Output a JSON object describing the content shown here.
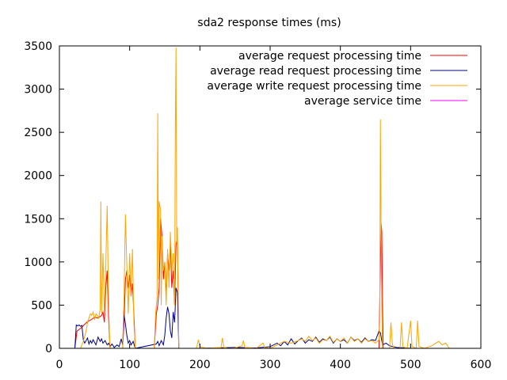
{
  "chart_data": {
    "type": "line",
    "title": "sda2 response times (ms)",
    "xlabel": "",
    "ylabel": "",
    "xlim": [
      0,
      600
    ],
    "ylim": [
      0,
      3500
    ],
    "xticks": [
      0,
      100,
      200,
      300,
      400,
      500,
      600
    ],
    "yticks": [
      0,
      500,
      1000,
      1500,
      2000,
      2500,
      3000,
      3500
    ],
    "grid": false,
    "legend_position": "top-right",
    "series": [
      {
        "name": "average request processing time",
        "color": "#ff0000",
        "points": [
          [
            22,
            0
          ],
          [
            25,
            200
          ],
          [
            30,
            230
          ],
          [
            35,
            270
          ],
          [
            40,
            310
          ],
          [
            45,
            330
          ],
          [
            50,
            360
          ],
          [
            55,
            350
          ],
          [
            60,
            380
          ],
          [
            62,
            420
          ],
          [
            64,
            300
          ],
          [
            66,
            700
          ],
          [
            68,
            900
          ],
          [
            70,
            350
          ],
          [
            72,
            0
          ],
          [
            80,
            0
          ],
          [
            90,
            0
          ],
          [
            92,
            300
          ],
          [
            94,
            800
          ],
          [
            96,
            900
          ],
          [
            98,
            700
          ],
          [
            100,
            850
          ],
          [
            102,
            600
          ],
          [
            104,
            750
          ],
          [
            106,
            400
          ],
          [
            108,
            0
          ],
          [
            135,
            0
          ],
          [
            138,
            400
          ],
          [
            140,
            500
          ],
          [
            142,
            700
          ],
          [
            144,
            1500
          ],
          [
            146,
            1300
          ],
          [
            148,
            800
          ],
          [
            150,
            1000
          ],
          [
            152,
            600
          ],
          [
            154,
            1100
          ],
          [
            156,
            900
          ],
          [
            158,
            1200
          ],
          [
            160,
            700
          ],
          [
            162,
            900
          ],
          [
            164,
            500
          ],
          [
            166,
            1200
          ],
          [
            168,
            1300
          ],
          [
            170,
            0
          ],
          [
            455,
            0
          ],
          [
            457,
            1000
          ],
          [
            458,
            1450
          ],
          [
            459,
            1350
          ],
          [
            460,
            500
          ],
          [
            461,
            0
          ]
        ]
      },
      {
        "name": "average read request processing time",
        "color": "#00008b",
        "points": [
          [
            22,
            0
          ],
          [
            24,
            270
          ],
          [
            26,
            260
          ],
          [
            28,
            270
          ],
          [
            30,
            255
          ],
          [
            32,
            265
          ],
          [
            34,
            100
          ],
          [
            36,
            60
          ],
          [
            38,
            90
          ],
          [
            40,
            120
          ],
          [
            42,
            50
          ],
          [
            44,
            90
          ],
          [
            46,
            60
          ],
          [
            48,
            100
          ],
          [
            50,
            70
          ],
          [
            52,
            40
          ],
          [
            55,
            130
          ],
          [
            58,
            80
          ],
          [
            60,
            110
          ],
          [
            62,
            60
          ],
          [
            65,
            90
          ],
          [
            68,
            40
          ],
          [
            70,
            60
          ],
          [
            72,
            20
          ],
          [
            75,
            50
          ],
          [
            78,
            10
          ],
          [
            82,
            40
          ],
          [
            85,
            20
          ],
          [
            88,
            110
          ],
          [
            90,
            40
          ],
          [
            92,
            390
          ],
          [
            94,
            280
          ],
          [
            96,
            150
          ],
          [
            98,
            60
          ],
          [
            100,
            90
          ],
          [
            102,
            40
          ],
          [
            105,
            80
          ],
          [
            108,
            0
          ],
          [
            138,
            50
          ],
          [
            140,
            80
          ],
          [
            142,
            30
          ],
          [
            145,
            90
          ],
          [
            148,
            40
          ],
          [
            150,
            150
          ],
          [
            152,
            350
          ],
          [
            154,
            480
          ],
          [
            156,
            400
          ],
          [
            158,
            200
          ],
          [
            160,
            120
          ],
          [
            162,
            420
          ],
          [
            164,
            300
          ],
          [
            166,
            700
          ],
          [
            168,
            650
          ],
          [
            170,
            0
          ],
          [
            200,
            0
          ],
          [
            250,
            10
          ],
          [
            280,
            5
          ],
          [
            300,
            20
          ],
          [
            310,
            60
          ],
          [
            315,
            30
          ],
          [
            320,
            80
          ],
          [
            325,
            40
          ],
          [
            330,
            110
          ],
          [
            335,
            50
          ],
          [
            340,
            90
          ],
          [
            345,
            120
          ],
          [
            350,
            60
          ],
          [
            355,
            100
          ],
          [
            360,
            80
          ],
          [
            365,
            130
          ],
          [
            370,
            70
          ],
          [
            375,
            110
          ],
          [
            380,
            90
          ],
          [
            385,
            130
          ],
          [
            390,
            60
          ],
          [
            395,
            110
          ],
          [
            400,
            80
          ],
          [
            405,
            100
          ],
          [
            410,
            60
          ],
          [
            415,
            130
          ],
          [
            420,
            90
          ],
          [
            425,
            110
          ],
          [
            430,
            70
          ],
          [
            435,
            120
          ],
          [
            440,
            80
          ],
          [
            445,
            100
          ],
          [
            450,
            90
          ],
          [
            455,
            200
          ],
          [
            457,
            180
          ],
          [
            460,
            40
          ],
          [
            465,
            60
          ],
          [
            470,
            30
          ],
          [
            475,
            20
          ],
          [
            480,
            10
          ],
          [
            490,
            5
          ],
          [
            500,
            0
          ]
        ]
      },
      {
        "name": "average write request processing time",
        "color": "#ffa500",
        "points": [
          [
            30,
            0
          ],
          [
            34,
            80
          ],
          [
            38,
            200
          ],
          [
            40,
            300
          ],
          [
            42,
            350
          ],
          [
            44,
            400
          ],
          [
            46,
            380
          ],
          [
            48,
            420
          ],
          [
            50,
            330
          ],
          [
            52,
            400
          ],
          [
            54,
            380
          ],
          [
            56,
            350
          ],
          [
            58,
            450
          ],
          [
            59,
            1700
          ],
          [
            60,
            400
          ],
          [
            62,
            1100
          ],
          [
            64,
            400
          ],
          [
            66,
            950
          ],
          [
            68,
            1650
          ],
          [
            70,
            500
          ],
          [
            72,
            0
          ],
          [
            90,
            0
          ],
          [
            92,
            600
          ],
          [
            94,
            1550
          ],
          [
            96,
            950
          ],
          [
            98,
            400
          ],
          [
            100,
            1100
          ],
          [
            102,
            600
          ],
          [
            104,
            1150
          ],
          [
            106,
            300
          ],
          [
            108,
            0
          ],
          [
            135,
            0
          ],
          [
            137,
            400
          ],
          [
            139,
            600
          ],
          [
            140,
            2720
          ],
          [
            141,
            800
          ],
          [
            142,
            1700
          ],
          [
            144,
            1600
          ],
          [
            145,
            500
          ],
          [
            146,
            1300
          ],
          [
            148,
            900
          ],
          [
            150,
            1000
          ],
          [
            152,
            500
          ],
          [
            154,
            1150
          ],
          [
            156,
            700
          ],
          [
            158,
            1350
          ],
          [
            160,
            900
          ],
          [
            162,
            1100
          ],
          [
            164,
            500
          ],
          [
            165,
            2500
          ],
          [
            166,
            3480
          ],
          [
            167,
            1200
          ],
          [
            168,
            1400
          ],
          [
            170,
            0
          ],
          [
            195,
            0
          ],
          [
            198,
            100
          ],
          [
            200,
            20
          ],
          [
            210,
            0
          ],
          [
            230,
            10
          ],
          [
            232,
            120
          ],
          [
            234,
            10
          ],
          [
            240,
            0
          ],
          [
            250,
            5
          ],
          [
            260,
            30
          ],
          [
            262,
            90
          ],
          [
            264,
            10
          ],
          [
            280,
            0
          ],
          [
            290,
            60
          ],
          [
            292,
            10
          ],
          [
            300,
            0
          ],
          [
            310,
            40
          ],
          [
            320,
            80
          ],
          [
            330,
            60
          ],
          [
            340,
            90
          ],
          [
            345,
            110
          ],
          [
            350,
            80
          ],
          [
            355,
            140
          ],
          [
            360,
            90
          ],
          [
            365,
            120
          ],
          [
            370,
            60
          ],
          [
            375,
            100
          ],
          [
            380,
            90
          ],
          [
            385,
            140
          ],
          [
            390,
            70
          ],
          [
            395,
            110
          ],
          [
            400,
            80
          ],
          [
            405,
            120
          ],
          [
            410,
            60
          ],
          [
            415,
            130
          ],
          [
            420,
            80
          ],
          [
            425,
            110
          ],
          [
            430,
            60
          ],
          [
            435,
            110
          ],
          [
            440,
            80
          ],
          [
            445,
            90
          ],
          [
            450,
            60
          ],
          [
            455,
            100
          ],
          [
            456,
            300
          ],
          [
            457,
            2650
          ],
          [
            458,
            1300
          ],
          [
            459,
            500
          ],
          [
            460,
            0
          ],
          [
            470,
            0
          ],
          [
            472,
            300
          ],
          [
            474,
            50
          ],
          [
            476,
            0
          ],
          [
            485,
            0
          ],
          [
            487,
            300
          ],
          [
            489,
            20
          ],
          [
            495,
            0
          ],
          [
            500,
            320
          ],
          [
            502,
            20
          ],
          [
            508,
            0
          ],
          [
            510,
            320
          ],
          [
            512,
            20
          ],
          [
            520,
            0
          ],
          [
            530,
            30
          ],
          [
            540,
            80
          ],
          [
            545,
            40
          ],
          [
            550,
            60
          ],
          [
            555,
            0
          ]
        ]
      },
      {
        "name": "average service time",
        "color": "#ff00ff",
        "points": []
      }
    ]
  }
}
